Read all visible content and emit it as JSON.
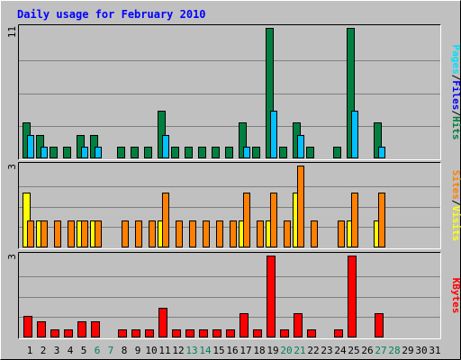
{
  "chart_data": {
    "type": "bar",
    "title": "Daily usage for February 2010",
    "categories": [
      "1",
      "2",
      "3",
      "4",
      "5",
      "6",
      "7",
      "8",
      "9",
      "10",
      "11",
      "12",
      "13",
      "14",
      "15",
      "16",
      "17",
      "18",
      "19",
      "20",
      "21",
      "22",
      "23",
      "24",
      "25",
      "26",
      "27",
      "28",
      "29",
      "30",
      "31"
    ],
    "weekend_days": [
      6,
      7,
      13,
      14,
      20,
      21,
      27,
      28
    ],
    "panels": [
      {
        "name": "hits-files-pages",
        "ymax_label": "11",
        "ymax": 11,
        "legend": [
          "Pages",
          "/",
          "Files",
          "/",
          "Hits"
        ],
        "series": [
          {
            "name": "Hits",
            "color": "#008040",
            "values": [
              3,
              2,
              1,
              1,
              2,
              2,
              0,
              1,
              1,
              1,
              4,
              1,
              1,
              1,
              1,
              1,
              3,
              1,
              11,
              1,
              3,
              1,
              0,
              1,
              11,
              0,
              3,
              0,
              0,
              0,
              0
            ]
          },
          {
            "name": "Files",
            "color": "#00c0ff",
            "values": [
              2,
              1,
              0,
              0,
              1,
              1,
              0,
              0,
              0,
              0,
              2,
              0,
              0,
              0,
              0,
              0,
              1,
              0,
              4,
              0,
              2,
              0,
              0,
              0,
              4,
              0,
              1,
              0,
              0,
              0,
              0
            ]
          },
          {
            "name": "Pages",
            "color": "#00e0ff",
            "values": [
              0,
              0,
              0,
              0,
              0,
              0,
              0,
              0,
              0,
              0,
              0,
              0,
              0,
              0,
              0,
              0,
              0,
              0,
              0,
              0,
              0,
              0,
              0,
              0,
              0,
              0,
              0,
              0,
              0,
              0,
              0
            ]
          }
        ]
      },
      {
        "name": "visits-sites",
        "ymax_label": "3",
        "ymax": 3,
        "legend": [
          "Sites",
          "/",
          "Visits"
        ],
        "series": [
          {
            "name": "Visits",
            "color": "#ffff00",
            "values": [
              2,
              1,
              0,
              0,
              1,
              1,
              0,
              0,
              0,
              0,
              1,
              0,
              0,
              0,
              0,
              0,
              1,
              0,
              1,
              0,
              2,
              0,
              0,
              0,
              1,
              0,
              1,
              0,
              0,
              0,
              0
            ]
          },
          {
            "name": "Sites",
            "color": "#ff8000",
            "values": [
              1,
              1,
              1,
              1,
              1,
              1,
              0,
              1,
              1,
              1,
              2,
              1,
              1,
              1,
              1,
              1,
              2,
              1,
              2,
              1,
              3,
              1,
              0,
              1,
              2,
              0,
              2,
              0,
              0,
              0,
              0
            ]
          }
        ]
      },
      {
        "name": "kbytes",
        "ymax_label": "3",
        "ymax": 3,
        "legend": [
          "KBytes"
        ],
        "series": [
          {
            "name": "KBytes",
            "color": "#ff0000",
            "values": [
              0.8,
              0.6,
              0.3,
              0.3,
              0.6,
              0.6,
              0,
              0.3,
              0.3,
              0.3,
              1.1,
              0.3,
              0.3,
              0.3,
              0.3,
              0.3,
              0.9,
              0.3,
              3.0,
              0.3,
              0.9,
              0.3,
              0,
              0.3,
              3.0,
              0,
              0.9,
              0,
              0,
              0,
              0
            ]
          }
        ]
      }
    ]
  },
  "colors": {
    "background": "#c0c0c0",
    "title": "#0000ff",
    "weekday_label": "#000000",
    "weekend_label": "#00805c",
    "legend_slash": "#000000",
    "legend_pages": "#00e0ff",
    "legend_files": "#0000ff",
    "legend_hits": "#008040",
    "legend_sites": "#ff8000",
    "legend_visits": "#ffff00",
    "legend_kbytes": "#ff0000"
  }
}
